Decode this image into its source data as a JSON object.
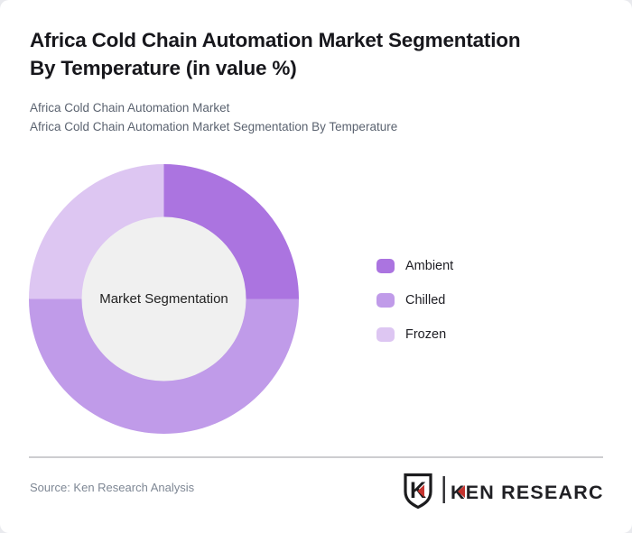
{
  "page": {
    "title_lines": [
      "Africa Cold Chain Automation Market Segmentation",
      "By Temperature (in value %)"
    ],
    "subtitle_line1": "Africa Cold Chain Automation Market",
    "subtitle_line2": "Africa Cold Chain Automation Market Segmentation By Temperature",
    "source": "Source: Ken Research Analysis",
    "logo": {
      "monogram": "K",
      "brand": "KEN RESEARCH",
      "accent_color": "#c4332e",
      "text_color": "#202024"
    }
  },
  "chart_data": {
    "type": "pie",
    "donut": true,
    "title": "Africa Cold Chain Automation Market Segmentation By Temperature (in value %)",
    "center_label": "Market Segmentation",
    "categories": [
      "Ambient",
      "Chilled",
      "Frozen"
    ],
    "values": [
      25,
      50,
      25
    ],
    "unit": "%",
    "colors": [
      "#ab74e0",
      "#c09be9",
      "#ddc6f2"
    ],
    "inner_circle_color": "#f0f0f0",
    "start_angle_deg": 0,
    "direction": "clockwise",
    "legend_position": "right",
    "grid": false
  }
}
